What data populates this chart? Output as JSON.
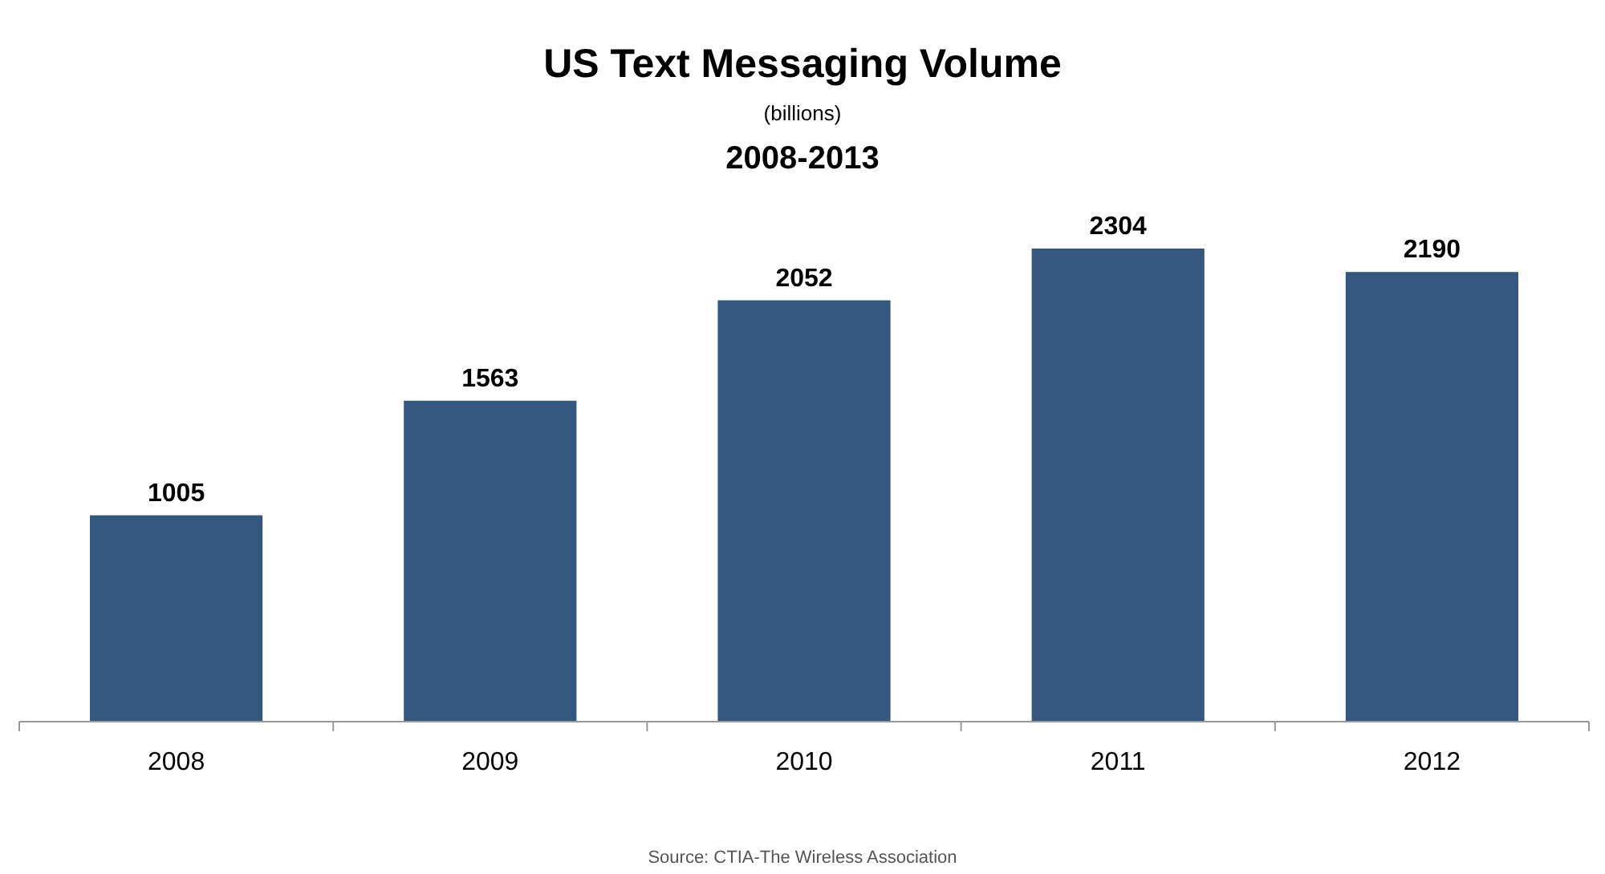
{
  "chart_data": {
    "type": "bar",
    "title": "US Text Messaging Volume",
    "subtitle": "2008-2013",
    "annotations": [
      "(billions)",
      "Source: CTIA-The Wireless Association"
    ],
    "categories": [
      "2008",
      "2009",
      "2010",
      "2011",
      "2012"
    ],
    "values": [
      1005,
      1563,
      2052,
      2304,
      2190
    ],
    "color": "#34577f",
    "data_labels": true
  }
}
